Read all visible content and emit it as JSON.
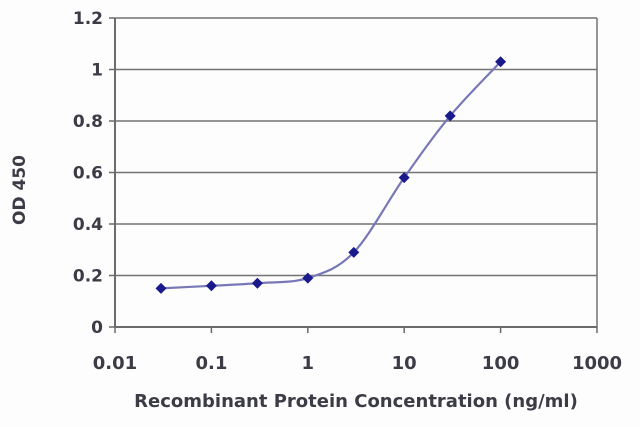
{
  "chart_data": {
    "type": "line",
    "title": "",
    "xlabel": "Recombinant Protein Concentration (ng/ml)",
    "ylabel": "OD 450",
    "x_scale": "log",
    "xlim": [
      0.01,
      1000
    ],
    "ylim": [
      0,
      1.2
    ],
    "x_ticks": [
      {
        "value": 0.01,
        "label": "0.01"
      },
      {
        "value": 0.1,
        "label": "0.1"
      },
      {
        "value": 1,
        "label": "1"
      },
      {
        "value": 10,
        "label": "10"
      },
      {
        "value": 100,
        "label": "100"
      },
      {
        "value": 1000,
        "label": "1000"
      }
    ],
    "y_ticks": [
      {
        "value": 0,
        "label": "0"
      },
      {
        "value": 0.2,
        "label": "0.2"
      },
      {
        "value": 0.4,
        "label": "0.4"
      },
      {
        "value": 0.6,
        "label": "0.6"
      },
      {
        "value": 0.8,
        "label": "0.8"
      },
      {
        "value": 1,
        "label": "1"
      },
      {
        "value": 1.2,
        "label": "1.2"
      }
    ],
    "grid": "horizontal",
    "legend": "none",
    "marker": "diamond",
    "series": [
      {
        "name": "OD 450",
        "x": [
          0.03,
          0.1,
          0.3,
          1,
          3,
          10,
          30,
          100
        ],
        "y": [
          0.15,
          0.16,
          0.17,
          0.19,
          0.29,
          0.58,
          0.82,
          1.03
        ]
      }
    ],
    "colors": {
      "line": "#7878b8",
      "marker": "#1a1a8c",
      "grid": "#737373",
      "axis": "#6b6b6b",
      "text": "#3c3c46",
      "plot_background": "#fdfdfd"
    }
  }
}
